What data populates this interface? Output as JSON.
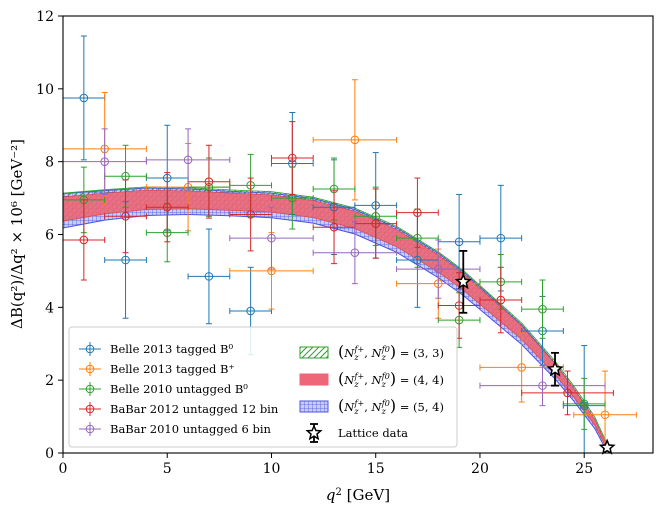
{
  "chart_data": {
    "type": "scatter",
    "title": "",
    "xlabel": "q² [GeV]",
    "ylabel": "ΔB(q²)/Δq² × 10⁶ [GeV⁻²]",
    "xlim": [
      0,
      28.3
    ],
    "ylim": [
      0,
      12
    ],
    "x_ticks": [
      0,
      5,
      10,
      15,
      20,
      25
    ],
    "y_ticks": [
      0,
      2,
      4,
      6,
      8,
      10,
      12
    ],
    "grid": false,
    "legend_position": "lower-left",
    "series": [
      {
        "name": "Belle 2013 tagged B⁰",
        "color": "#1f77b4",
        "marker": "circle",
        "points": [
          {
            "x": 1,
            "xerr": 1,
            "y": 9.75,
            "yerr": 1.7
          },
          {
            "x": 3,
            "xerr": 1,
            "y": 5.3,
            "yerr": 1.6
          },
          {
            "x": 5,
            "xerr": 1,
            "y": 7.55,
            "yerr": 1.45
          },
          {
            "x": 7,
            "xerr": 1,
            "y": 4.85,
            "yerr": 1.3
          },
          {
            "x": 9,
            "xerr": 1,
            "y": 3.9,
            "yerr": 1.2
          },
          {
            "x": 11,
            "xerr": 1,
            "y": 7.95,
            "yerr": 1.4
          },
          {
            "x": 13,
            "xerr": 1,
            "y": 6.75,
            "yerr": 1.3
          },
          {
            "x": 15,
            "xerr": 1,
            "y": 6.8,
            "yerr": 1.45
          },
          {
            "x": 17,
            "xerr": 1,
            "y": 5.3,
            "yerr": 1.3
          },
          {
            "x": 19,
            "xerr": 1,
            "y": 5.8,
            "yerr": 1.3
          },
          {
            "x": 21,
            "xerr": 1,
            "y": 5.9,
            "yerr": 1.45
          },
          {
            "x": 23,
            "xerr": 1,
            "y": 3.35,
            "yerr": 0.95
          },
          {
            "x": 25,
            "xerr": 1,
            "y": 1.3,
            "yerr": 1.65
          }
        ]
      },
      {
        "name": "Belle 2013 tagged B⁺",
        "color": "#ff7f0e",
        "marker": "circle",
        "points": [
          {
            "x": 2,
            "xerr": 2,
            "y": 8.35,
            "yerr": 1.55
          },
          {
            "x": 6,
            "xerr": 2,
            "y": 7.3,
            "yerr": 1.2
          },
          {
            "x": 10,
            "xerr": 2,
            "y": 5.0,
            "yerr": 1.05
          },
          {
            "x": 14,
            "xerr": 2,
            "y": 8.6,
            "yerr": 1.65
          },
          {
            "x": 18,
            "xerr": 2,
            "y": 4.65,
            "yerr": 0.95
          },
          {
            "x": 22,
            "xerr": 2,
            "y": 2.35,
            "yerr": 0.95
          },
          {
            "x": 26,
            "xerr": 1.5,
            "y": 1.05,
            "yerr": 1.2
          }
        ]
      },
      {
        "name": "Belle 2010 untagged B⁰",
        "color": "#2ca02c",
        "marker": "circle",
        "points": [
          {
            "x": 1,
            "xerr": 1,
            "y": 6.95,
            "yerr": 0.9
          },
          {
            "x": 3,
            "xerr": 1,
            "y": 7.6,
            "yerr": 0.85
          },
          {
            "x": 5,
            "xerr": 1,
            "y": 6.05,
            "yerr": 0.8
          },
          {
            "x": 7,
            "xerr": 1,
            "y": 7.3,
            "yerr": 0.8
          },
          {
            "x": 9,
            "xerr": 1,
            "y": 7.35,
            "yerr": 0.85
          },
          {
            "x": 11,
            "xerr": 1,
            "y": 7.0,
            "yerr": 0.85
          },
          {
            "x": 13,
            "xerr": 1,
            "y": 7.25,
            "yerr": 0.85
          },
          {
            "x": 15,
            "xerr": 1,
            "y": 6.5,
            "yerr": 0.8
          },
          {
            "x": 17,
            "xerr": 1,
            "y": 5.9,
            "yerr": 0.8
          },
          {
            "x": 19,
            "xerr": 1,
            "y": 3.65,
            "yerr": 0.75
          },
          {
            "x": 21,
            "xerr": 1,
            "y": 4.7,
            "yerr": 0.75
          },
          {
            "x": 23,
            "xerr": 1,
            "y": 3.95,
            "yerr": 0.8
          },
          {
            "x": 25,
            "xerr": 1,
            "y": 1.35,
            "yerr": 0.7
          }
        ]
      },
      {
        "name": "BaBar 2012 untagged 12 bin",
        "color": "#d62728",
        "marker": "circle",
        "points": [
          {
            "x": 1,
            "xerr": 1,
            "y": 5.85,
            "yerr": 1.1
          },
          {
            "x": 3,
            "xerr": 1,
            "y": 6.5,
            "yerr": 1.0
          },
          {
            "x": 5,
            "xerr": 1,
            "y": 6.75,
            "yerr": 0.95
          },
          {
            "x": 7,
            "xerr": 1,
            "y": 7.45,
            "yerr": 1.0
          },
          {
            "x": 9,
            "xerr": 1,
            "y": 6.55,
            "yerr": 1.0
          },
          {
            "x": 11,
            "xerr": 1,
            "y": 8.1,
            "yerr": 1.0
          },
          {
            "x": 13,
            "xerr": 1,
            "y": 6.2,
            "yerr": 1.0
          },
          {
            "x": 15,
            "xerr": 1,
            "y": 6.3,
            "yerr": 0.95
          },
          {
            "x": 17,
            "xerr": 1,
            "y": 6.6,
            "yerr": 0.95
          },
          {
            "x": 19,
            "xerr": 1,
            "y": 4.05,
            "yerr": 0.9
          },
          {
            "x": 21,
            "xerr": 1,
            "y": 4.2,
            "yerr": 0.9
          },
          {
            "x": 24.2,
            "xerr": 2.2,
            "y": 1.65,
            "yerr": 0.6
          }
        ]
      },
      {
        "name": "BaBar 2010 untagged 6 bin",
        "color": "#9467bd",
        "marker": "circle",
        "points": [
          {
            "x": 2,
            "xerr": 2,
            "y": 8.0,
            "yerr": 0.9
          },
          {
            "x": 6,
            "xerr": 2,
            "y": 8.05,
            "yerr": 0.85
          },
          {
            "x": 10,
            "xerr": 2,
            "y": 5.9,
            "yerr": 0.85
          },
          {
            "x": 14,
            "xerr": 2,
            "y": 5.5,
            "yerr": 0.85
          },
          {
            "x": 18,
            "xerr": 2,
            "y": 5.05,
            "yerr": 0.8
          },
          {
            "x": 23,
            "xerr": 3,
            "y": 1.85,
            "yerr": 0.55
          }
        ]
      }
    ],
    "bands": [
      {
        "name": "(N_z^{f+}, N_z^{f0}) = (3, 3)",
        "label_value": "(3, 3)",
        "color": "#2ca02c",
        "style": "hatch-diagonal"
      },
      {
        "name": "(N_z^{f+}, N_z^{f0}) = (4, 4)",
        "label_value": "(4, 4)",
        "color": "#ee6677",
        "style": "solid"
      },
      {
        "name": "(N_z^{f+}, N_z^{f0}) = (5, 4)",
        "label_value": "(5, 4)",
        "color": "#4b55e0",
        "style": "hatch-grid"
      }
    ],
    "band_center": {
      "q2": [
        0,
        2,
        4,
        6,
        8,
        10,
        12,
        14,
        16,
        18,
        19.2,
        20,
        22,
        23.6,
        24.5,
        25.5,
        26.1
      ],
      "value": [
        6.7,
        6.85,
        6.95,
        6.95,
        6.9,
        6.85,
        6.7,
        6.4,
        5.9,
        5.2,
        4.7,
        4.3,
        3.3,
        2.3,
        1.65,
        0.85,
        0.15
      ],
      "halfwidth": [
        0.35,
        0.3,
        0.28,
        0.26,
        0.25,
        0.25,
        0.25,
        0.25,
        0.25,
        0.25,
        0.24,
        0.23,
        0.2,
        0.16,
        0.13,
        0.09,
        0.05
      ]
    },
    "lattice": {
      "name": "Lattice data",
      "color": "#000000",
      "marker": "star",
      "points": [
        {
          "x": 19.2,
          "y": 4.7,
          "yerr": 0.85
        },
        {
          "x": 23.6,
          "y": 2.3,
          "yerr": 0.45
        },
        {
          "x": 26.1,
          "y": 0.15,
          "yerr": 0.03
        }
      ]
    }
  }
}
